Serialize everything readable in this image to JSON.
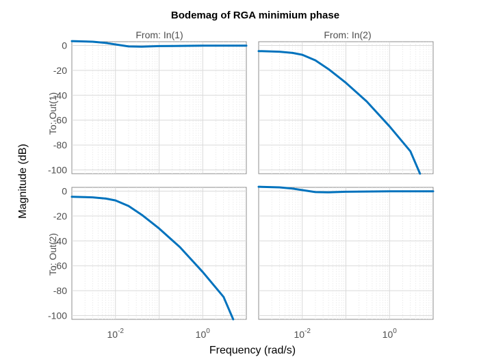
{
  "chart_data": {
    "type": "line",
    "title": "Bodemag of RGA minimium phase",
    "xlabel": "Frequency  (rad/s)",
    "ylabel": "Magnitude (dB)",
    "x_scale": "log",
    "xlim": [
      0.001,
      10
    ],
    "ylim": [
      -103,
      3
    ],
    "y_ticks": [
      "0",
      "-20",
      "-40",
      "-60",
      "-80",
      "-100"
    ],
    "x_tick_labels": [
      {
        "base": "10",
        "exp": "-2"
      },
      {
        "base": "10",
        "exp": "0"
      }
    ],
    "grid": true,
    "line_color": "#0072BD",
    "columns": [
      "From: In(1)",
      "From: In(2)"
    ],
    "rows": [
      "To: Out(1)",
      "To: Out(2)"
    ],
    "panels": [
      {
        "row": 0,
        "col": 0,
        "x": [
          0.001,
          0.003,
          0.006,
          0.01,
          0.02,
          0.04,
          0.1,
          1,
          10
        ],
        "y": [
          3.5,
          3.0,
          2.0,
          0.8,
          -0.8,
          -1.0,
          -0.5,
          -0.2,
          -0.2
        ]
      },
      {
        "row": 0,
        "col": 1,
        "x": [
          0.001,
          0.003,
          0.006,
          0.01,
          0.02,
          0.04,
          0.1,
          0.3,
          1,
          3,
          5
        ],
        "y": [
          -4.5,
          -5.0,
          -6.0,
          -7.5,
          -12,
          -19,
          -30,
          -45,
          -65,
          -85,
          -103
        ]
      },
      {
        "row": 1,
        "col": 0,
        "x": [
          0.001,
          0.003,
          0.006,
          0.01,
          0.02,
          0.04,
          0.1,
          0.3,
          1,
          3,
          5
        ],
        "y": [
          -4.5,
          -5.0,
          -6.0,
          -7.5,
          -12,
          -19,
          -30,
          -45,
          -65,
          -85,
          -103
        ]
      },
      {
        "row": 1,
        "col": 1,
        "x": [
          0.001,
          0.003,
          0.006,
          0.01,
          0.02,
          0.04,
          0.1,
          1,
          10
        ],
        "y": [
          3.5,
          3.0,
          2.0,
          0.8,
          -0.8,
          -1.0,
          -0.5,
          -0.2,
          -0.2
        ]
      }
    ]
  }
}
